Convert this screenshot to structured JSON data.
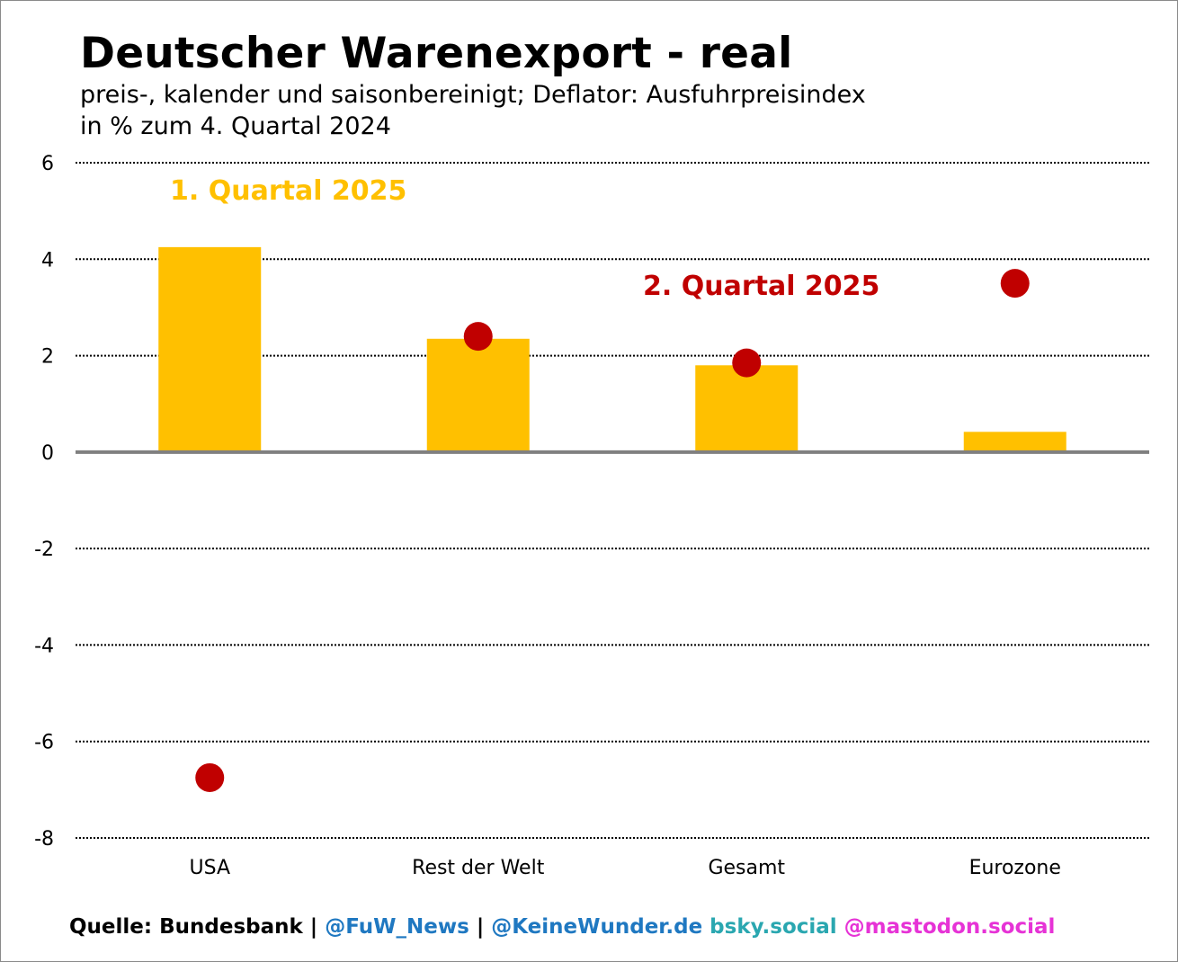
{
  "chart_data": {
    "type": "bar",
    "title": "Deutscher Warenexport - real",
    "subtitle_lines": [
      "preis-, kalender und saisonbereinigt; Deflator: Ausfuhrpreisindex",
      "in % zum 4. Quartal 2024"
    ],
    "categories": [
      "USA",
      "Rest der Welt",
      "Gesamt",
      "Eurozone"
    ],
    "series": [
      {
        "name": "1. Quartal 2025",
        "mark": "bar",
        "color": "#FFC000",
        "values": [
          4.25,
          2.35,
          1.8,
          0.42
        ]
      },
      {
        "name": "2. Quartal 2025",
        "mark": "dot",
        "color": "#C00000",
        "values": [
          -6.75,
          2.4,
          1.85,
          3.5
        ]
      }
    ],
    "ylim": [
      -8,
      6
    ],
    "yticks": [
      6,
      4,
      2,
      0,
      -2,
      -4,
      -6,
      -8
    ],
    "ytick_labels": [
      "6",
      "4",
      "2",
      "0",
      "-2",
      "-4",
      "-6",
      "-8"
    ],
    "grid": true,
    "xlabel": "",
    "ylabel": ""
  },
  "footer": {
    "source": "Quelle: Bundesbank",
    "separator": " | ",
    "handle1": "@FuW_News",
    "handle2": "@KeineWunder.de",
    "bluesky": " bsky.social",
    "mastodon": " @mastodon.social",
    "colors": {
      "source": "#000000",
      "handle": "#1F78C1",
      "bluesky": "#2AA7B0",
      "mastodon": "#E633D6"
    }
  }
}
